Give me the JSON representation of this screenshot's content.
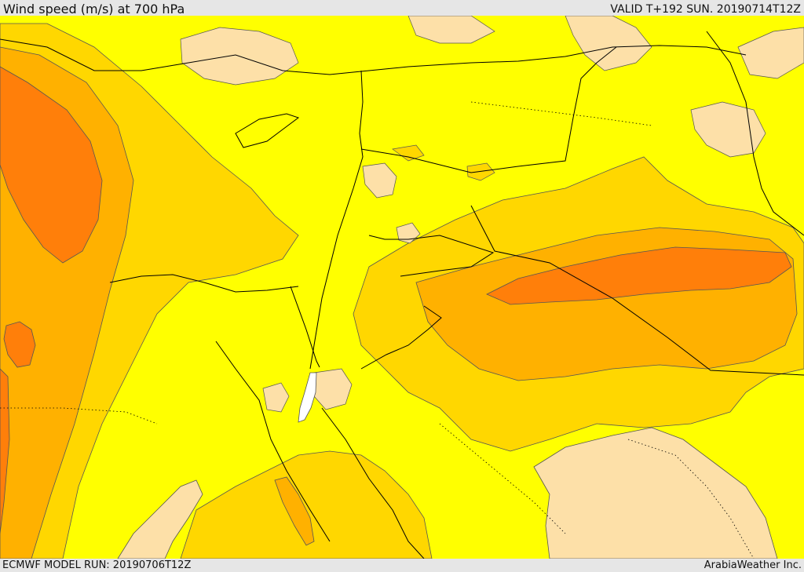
{
  "header": {
    "title": "Wind speed (m/s) at 700 hPa",
    "valid": "VALID T+192 SUN. 20190714T12Z"
  },
  "footer": {
    "model_run": "ECMWF MODEL RUN: 20190706T12Z",
    "credit": "ArabiaWeather Inc."
  },
  "colors": {
    "background": "#ffff00",
    "tan": "#fde0a8",
    "gold": "#ffd700",
    "orange_light": "#ffb100",
    "orange": "#ff7f0a",
    "lake": "#ffffff",
    "border": "#000000",
    "contour": "#555555"
  }
}
